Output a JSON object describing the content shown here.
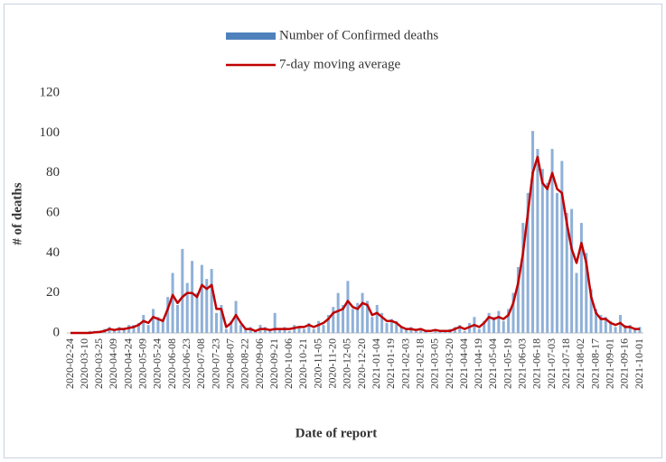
{
  "chart_data": {
    "type": "bar-line",
    "x_label": "Date of report",
    "y_label": "# of deaths",
    "ylim": [
      0,
      120
    ],
    "yticks": [
      0,
      20,
      40,
      60,
      80,
      100,
      120
    ],
    "x": [
      "2020-02-24",
      "2020-02-29",
      "2020-03-05",
      "2020-03-10",
      "2020-03-15",
      "2020-03-20",
      "2020-03-25",
      "2020-03-30",
      "2020-04-04",
      "2020-04-09",
      "2020-04-14",
      "2020-04-19",
      "2020-04-24",
      "2020-04-29",
      "2020-05-04",
      "2020-05-09",
      "2020-05-14",
      "2020-05-19",
      "2020-05-24",
      "2020-05-29",
      "2020-06-03",
      "2020-06-08",
      "2020-06-13",
      "2020-06-18",
      "2020-06-23",
      "2020-06-28",
      "2020-07-03",
      "2020-07-08",
      "2020-07-13",
      "2020-07-18",
      "2020-07-23",
      "2020-07-28",
      "2020-08-02",
      "2020-08-07",
      "2020-08-12",
      "2020-08-17",
      "2020-08-22",
      "2020-08-27",
      "2020-09-01",
      "2020-09-06",
      "2020-09-11",
      "2020-09-16",
      "2020-09-21",
      "2020-09-26",
      "2020-10-01",
      "2020-10-06",
      "2020-10-11",
      "2020-10-16",
      "2020-10-21",
      "2020-10-26",
      "2020-10-31",
      "2020-11-05",
      "2020-11-10",
      "2020-11-15",
      "2020-11-20",
      "2020-11-25",
      "2020-11-30",
      "2020-12-05",
      "2020-12-10",
      "2020-12-15",
      "2020-12-20",
      "2020-12-25",
      "2020-12-30",
      "2021-01-04",
      "2021-01-09",
      "2021-01-14",
      "2021-01-19",
      "2021-01-24",
      "2021-01-29",
      "2021-02-03",
      "2021-02-08",
      "2021-02-13",
      "2021-02-18",
      "2021-02-23",
      "2021-02-28",
      "2021-03-05",
      "2021-03-10",
      "2021-03-15",
      "2021-03-20",
      "2021-03-25",
      "2021-03-30",
      "2021-04-04",
      "2021-04-09",
      "2021-04-14",
      "2021-04-19",
      "2021-04-24",
      "2021-04-29",
      "2021-05-04",
      "2021-05-09",
      "2021-05-14",
      "2021-05-19",
      "2021-05-24",
      "2021-05-29",
      "2021-06-03",
      "2021-06-08",
      "2021-06-13",
      "2021-06-18",
      "2021-06-23",
      "2021-06-28",
      "2021-07-03",
      "2021-07-08",
      "2021-07-13",
      "2021-07-18",
      "2021-07-23",
      "2021-07-28",
      "2021-08-02",
      "2021-08-07",
      "2021-08-12",
      "2021-08-17",
      "2021-08-22",
      "2021-08-27",
      "2021-09-01",
      "2021-09-06",
      "2021-09-11",
      "2021-09-16",
      "2021-09-21",
      "2021-09-26",
      "2021-10-01"
    ],
    "xticks": [
      "2020-02-24",
      "2020-03-10",
      "2020-03-25",
      "2020-04-09",
      "2020-04-24",
      "2020-05-09",
      "2020-05-24",
      "2020-06-08",
      "2020-06-23",
      "2020-07-08",
      "2020-07-23",
      "2020-08-07",
      "2020-08-22",
      "2020-09-06",
      "2020-09-21",
      "2020-10-06",
      "2020-10-21",
      "2020-11-05",
      "2020-11-20",
      "2020-12-05",
      "2020-12-20",
      "2021-01-04",
      "2021-01-19",
      "2021-02-03",
      "2021-02-18",
      "2021-03-05",
      "2021-03-20",
      "2021-04-04",
      "2021-04-19",
      "2021-05-04",
      "2021-05-19",
      "2021-06-03",
      "2021-06-18",
      "2021-07-03",
      "2021-07-18",
      "2021-08-02",
      "2021-08-17",
      "2021-09-01",
      "2021-09-16",
      "2021-10-01"
    ],
    "series": [
      {
        "name": "Number of Confirmed deaths",
        "type": "bar",
        "color": "#8fb0d8",
        "values": [
          0,
          0,
          0,
          0,
          1,
          1,
          1,
          2,
          3,
          1,
          3,
          2,
          4,
          4,
          5,
          9,
          4,
          12,
          8,
          7,
          18,
          30,
          14,
          42,
          25,
          36,
          20,
          34,
          27,
          32,
          10,
          14,
          2,
          6,
          16,
          4,
          2,
          3,
          1,
          4,
          3,
          1,
          10,
          2,
          3,
          1,
          4,
          3,
          2,
          5,
          2,
          6,
          4,
          9,
          13,
          20,
          14,
          26,
          12,
          15,
          20,
          16,
          8,
          14,
          10,
          5,
          7,
          6,
          3,
          2,
          3,
          1,
          2,
          1,
          0,
          2,
          1,
          1,
          2,
          3,
          4,
          1,
          5,
          8,
          2,
          6,
          10,
          8,
          11,
          6,
          12,
          20,
          33,
          55,
          70,
          101,
          92,
          82,
          75,
          92,
          70,
          86,
          60,
          62,
          30,
          55,
          40,
          22,
          12,
          9,
          8,
          6,
          3,
          9,
          4,
          4,
          2,
          3
        ]
      },
      {
        "name": "7-day moving average",
        "type": "line",
        "color": "#c00000",
        "values": [
          0,
          0,
          0,
          0,
          0,
          0.3,
          0.5,
          1,
          2,
          1.5,
          2,
          2,
          2.5,
          3,
          4,
          6,
          5,
          8,
          7,
          6,
          12,
          19,
          15,
          18,
          20,
          20,
          18,
          24,
          22,
          24,
          12,
          12,
          3,
          5,
          9,
          5,
          2,
          2,
          1,
          2,
          2,
          1.5,
          2,
          2,
          2,
          2,
          2.5,
          3,
          3,
          4,
          3,
          4,
          5,
          7,
          10,
          11,
          12,
          16,
          13,
          12,
          15,
          14,
          9,
          10,
          8,
          6,
          6,
          5,
          3,
          2,
          2,
          1.5,
          2,
          1,
          1,
          1.5,
          1,
          1,
          1,
          2,
          3,
          2,
          3,
          4,
          3,
          5,
          8,
          7,
          8,
          7,
          9,
          15,
          25,
          40,
          60,
          80,
          88,
          75,
          72,
          80,
          72,
          70,
          55,
          42,
          35,
          45,
          35,
          18,
          10,
          7,
          7,
          5,
          4,
          5,
          3,
          3,
          2,
          2
        ]
      }
    ]
  }
}
